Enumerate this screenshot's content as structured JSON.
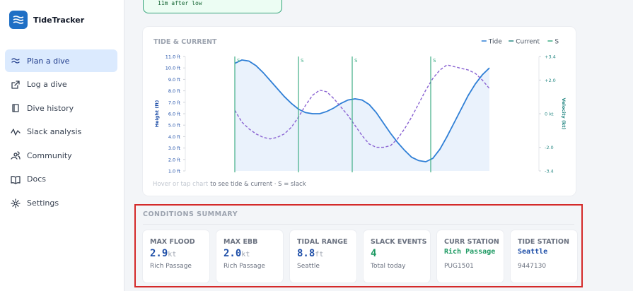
{
  "sidebar": {
    "brand": "TideTracker",
    "active": "Plan a dive",
    "nav": [
      "Plan a dive",
      "Log a dive",
      "Dive history",
      "Slack analysis",
      "Community",
      "Docs",
      "Settings"
    ]
  },
  "top_box": {
    "text": "11m after low"
  },
  "chart_data": {
    "type": "line",
    "title": "TIDE & CURRENT",
    "footer_hint": "Hover or tap chart",
    "footer_text": "to see tide & current · S = slack",
    "ylabel": "Height (ft)",
    "y2label": "Velocity (kt)",
    "categories": [
      null,
      null,
      null,
      null,
      null,
      null,
      null,
      null,
      null,
      null,
      null,
      null,
      null,
      null,
      null,
      null,
      null,
      null,
      null,
      null,
      null,
      null,
      null,
      null,
      null,
      null,
      null,
      null,
      null,
      null,
      null,
      null,
      null,
      null,
      null,
      null,
      null
    ],
    "series": [
      {
        "name": "Tide",
        "color": "#2f7fd6",
        "fill": "#eaf2fc",
        "values": [
          10.4,
          10.7,
          10.6,
          10.2,
          9.6,
          8.9,
          8.2,
          7.5,
          6.9,
          6.4,
          6.1,
          6.0,
          6.0,
          6.2,
          6.5,
          6.9,
          7.2,
          7.3,
          7.2,
          6.8,
          6.1,
          5.2,
          4.3,
          3.5,
          2.8,
          2.2,
          1.9,
          1.8,
          2.1,
          2.9,
          4.0,
          5.2,
          6.4,
          7.6,
          8.6,
          9.4,
          10.0
        ]
      },
      {
        "name": "Current",
        "color": "#8a63d2",
        "legend_color": "#2a8a86",
        "axis": "y2",
        "dashed": true,
        "values": [
          0.2,
          -0.5,
          -0.9,
          -1.2,
          -1.4,
          -1.5,
          -1.4,
          -1.2,
          -0.8,
          -0.2,
          0.5,
          1.1,
          1.4,
          1.3,
          0.9,
          0.4,
          -0.1,
          -0.7,
          -1.3,
          -1.8,
          -2.0,
          -2.0,
          -1.9,
          -1.5,
          -0.9,
          -0.2,
          0.6,
          1.4,
          2.1,
          2.6,
          2.9,
          2.8,
          2.7,
          2.6,
          2.4,
          2.0,
          1.5
        ]
      }
    ],
    "slack": {
      "name": "S",
      "color": "#3fae86",
      "x": [
        0,
        9,
        16.6,
        27.7
      ],
      "labels": [
        "S",
        "S",
        "S",
        "S"
      ]
    },
    "ylim": [
      1,
      11
    ],
    "yticks": [
      {
        "value": 1,
        "label": "1.0 ft"
      },
      {
        "value": 2,
        "label": "2.0 ft"
      },
      {
        "value": 3,
        "label": "3.0 ft"
      },
      {
        "value": 4,
        "label": "4.0 ft"
      },
      {
        "value": 5,
        "label": "5.0 ft"
      },
      {
        "value": 6,
        "label": "6.0 ft"
      },
      {
        "value": 7,
        "label": "7.0 ft"
      },
      {
        "value": 8,
        "label": "8.0 ft"
      },
      {
        "value": 9,
        "label": "9.0 ft"
      },
      {
        "value": 10,
        "label": "10.0 ft"
      },
      {
        "value": 11,
        "label": "11.0 ft"
      }
    ],
    "y2lim": [
      -3.4,
      3.4
    ],
    "y2ticks": [
      {
        "value": 3.4,
        "label": "+3.4"
      },
      {
        "value": 2,
        "label": "+2.0"
      },
      {
        "value": 0,
        "label": "0 kt"
      },
      {
        "value": -2,
        "label": "-2.0"
      },
      -3.4
    ],
    "legend": "top-right"
  },
  "summary": {
    "title": "CONDITIONS SUMMARY",
    "cards": [
      {
        "label": "MAX FLOOD",
        "value": "2.9",
        "unit": "kt",
        "sub": "Rich Passage",
        "color": "#1f4fa8"
      },
      {
        "label": "MAX EBB",
        "value": "2.0",
        "unit": "kt",
        "sub": "Rich Passage",
        "color": "#1f4fa8"
      },
      {
        "label": "TIDAL RANGE",
        "value": "8.8",
        "unit": "ft",
        "sub": "Seattle",
        "color": "#1f4fa8"
      },
      {
        "label": "SLACK EVENTS",
        "value": "4",
        "sub": "Total today",
        "color": "#1e9a63"
      },
      {
        "label": "CURR STATION",
        "value": "Rich Passage",
        "sub": "PUG1501",
        "color": "#1e9a63"
      },
      {
        "label": "TIDE STATION",
        "value": "Seattle",
        "sub": "9447130",
        "color": "#1f4fa8"
      }
    ]
  }
}
